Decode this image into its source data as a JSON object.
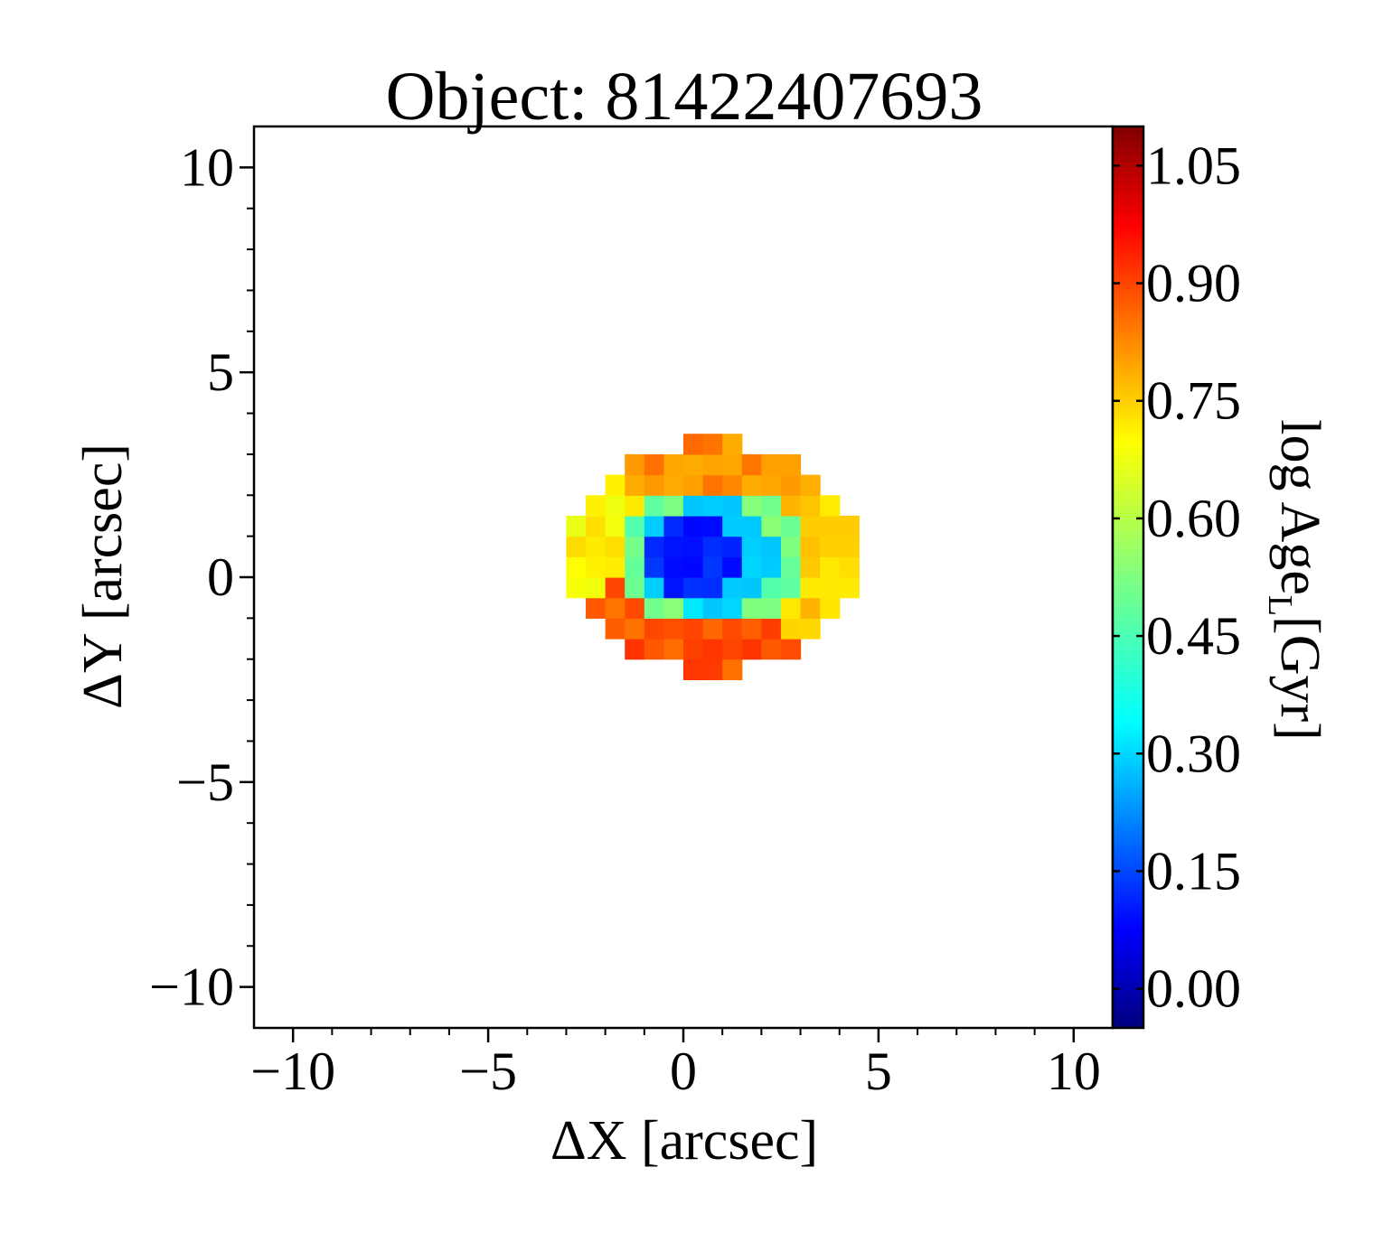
{
  "chart_data": {
    "type": "heatmap",
    "title": "Object: 81422407693",
    "xlabel": "ΔX [arcsec]",
    "ylabel": "ΔY [arcsec]",
    "colorbar_label": "log Age",
    "colorbar_label_sub": "L",
    "colorbar_label_unit": "[Gyr]",
    "xlim": [
      -11,
      11
    ],
    "ylim": [
      -11,
      11
    ],
    "x_ticks": [
      -10,
      -5,
      0,
      5,
      10
    ],
    "y_ticks": [
      -10,
      -5,
      0,
      5,
      10
    ],
    "x_tick_labels": [
      "−10",
      "−5",
      "0",
      "5",
      "10"
    ],
    "y_tick_labels": [
      "−10",
      "−5",
      "0",
      "5",
      "10"
    ],
    "colorbar_range": [
      -0.05,
      1.1
    ],
    "colorbar_ticks": [
      0.0,
      0.15,
      0.3,
      0.45,
      0.6,
      0.75,
      0.9,
      1.05
    ],
    "colorbar_tick_labels": [
      "0.00",
      "0.15",
      "0.30",
      "0.45",
      "0.60",
      "0.75",
      "0.90",
      "1.05"
    ],
    "colormap": "jet",
    "pixel_size_arcsec": 0.5,
    "map": {
      "center": [
        0.7,
        0.5
      ],
      "semi_axes": [
        3.7,
        2.8
      ],
      "regions": [
        {
          "name": "core",
          "value": 0.13
        },
        {
          "name": "inner-ring",
          "value": 0.33
        },
        {
          "name": "green-ring",
          "value": 0.5
        },
        {
          "name": "outer-left",
          "value": 0.68
        },
        {
          "name": "outer-top",
          "value": 0.8
        },
        {
          "name": "outer-right",
          "value": 0.72
        },
        {
          "name": "outer-bottom",
          "value": 0.86
        }
      ]
    }
  }
}
